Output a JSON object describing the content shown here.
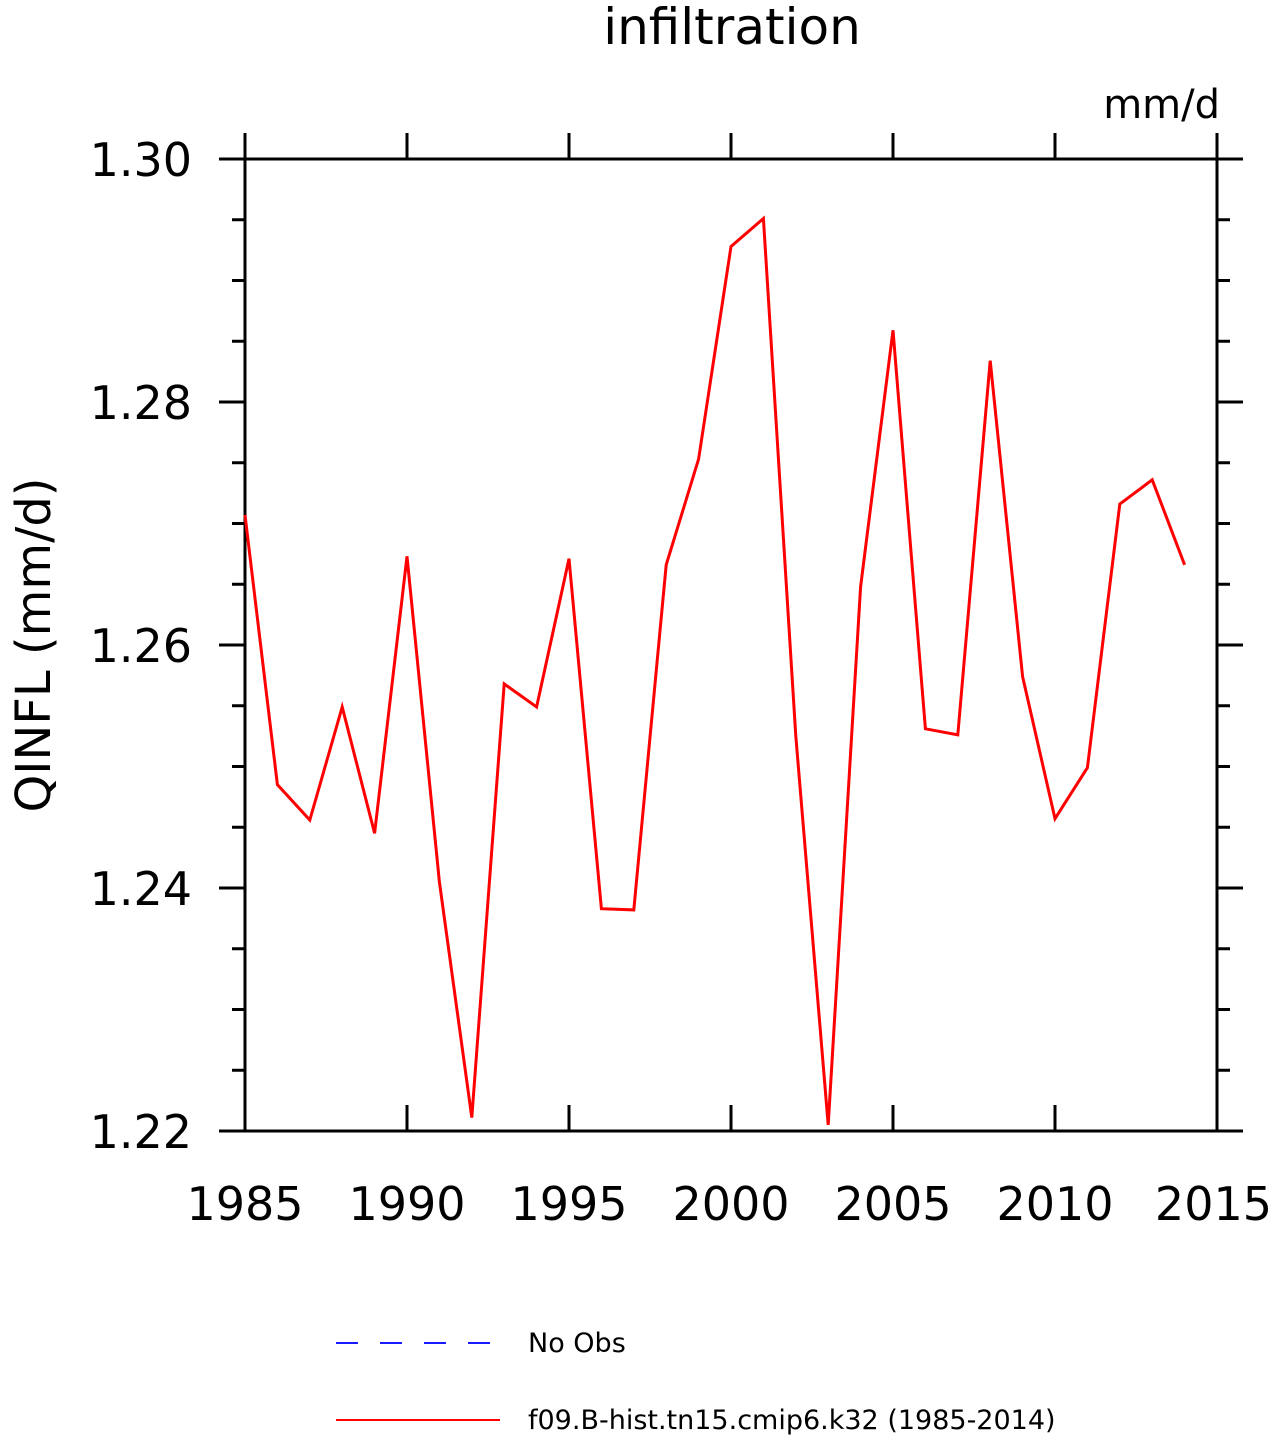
{
  "chart_data": {
    "type": "line",
    "title": "infiltration",
    "units_label": "mm/d",
    "ylabel": "QINFL   (mm/d)",
    "xlabel": "",
    "xlim": [
      1985,
      2015
    ],
    "ylim": [
      1.22,
      1.3
    ],
    "x_ticks": [
      1985,
      1990,
      1995,
      2000,
      2005,
      2010,
      2015
    ],
    "x_tick_labels": [
      "1985",
      "1990",
      "1995",
      "2000",
      "2005",
      "2010",
      "2015"
    ],
    "y_ticks": [
      1.22,
      1.24,
      1.26,
      1.28,
      1.3
    ],
    "y_tick_labels": [
      "1.22",
      "1.24",
      "1.26",
      "1.28",
      "1.30"
    ],
    "y_minor_step": 0.005,
    "grid": false,
    "legend_position": "bottom",
    "legend": [
      {
        "label": "No Obs",
        "color": "#1a1aff",
        "dash": true
      },
      {
        "label": "f09.B-hist.tn15.cmip6.k32 (1985-2014)",
        "color": "#ff0000",
        "dash": false
      }
    ],
    "series": [
      {
        "name": "f09.B-hist.tn15.cmip6.k32 (1985-2014)",
        "color": "#ff0000",
        "x": [
          1985,
          1986,
          1987,
          1988,
          1989,
          1990,
          1991,
          1992,
          1993,
          1994,
          1995,
          1996,
          1997,
          1998,
          1999,
          2000,
          2001,
          2002,
          2003,
          2004,
          2005,
          2006,
          2007,
          2008,
          2009,
          2010,
          2011,
          2012,
          2013,
          2014
        ],
        "y": [
          1.2707,
          1.2485,
          1.2456,
          1.2549,
          1.2445,
          1.2673,
          1.2405,
          1.2211,
          1.2568,
          1.2549,
          1.2671,
          1.2383,
          1.2382,
          1.2666,
          1.2753,
          1.2928,
          1.2951,
          1.2525,
          1.2205,
          1.2648,
          1.2859,
          1.2531,
          1.2526,
          1.2834,
          1.2574,
          1.2457,
          1.2499,
          1.2716,
          1.2736,
          1.2666
        ]
      }
    ]
  }
}
